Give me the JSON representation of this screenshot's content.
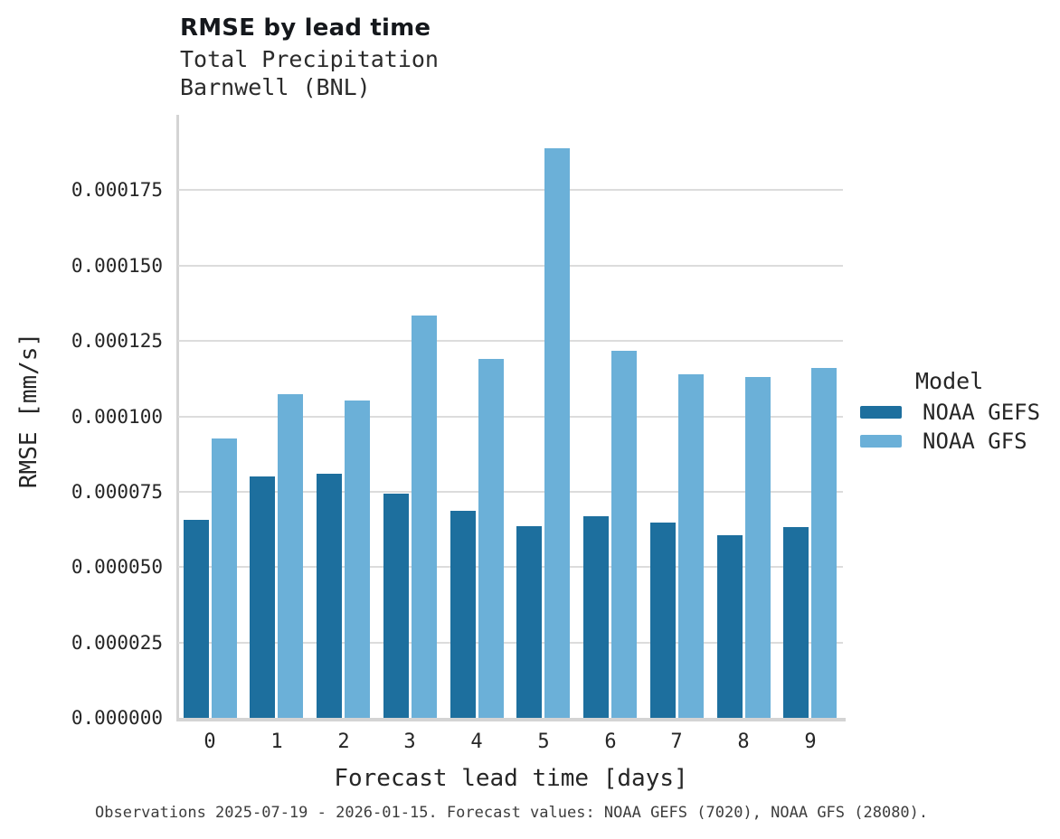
{
  "header": {
    "title": "RMSE by lead time",
    "subtitle_line1": "Total Precipitation",
    "subtitle_line2": "Barnwell (BNL)"
  },
  "chart_data": {
    "type": "bar",
    "title": "RMSE by lead time",
    "subtitle": [
      "Total Precipitation",
      "Barnwell (BNL)"
    ],
    "categories": [
      "0",
      "1",
      "2",
      "3",
      "4",
      "5",
      "6",
      "7",
      "8",
      "9"
    ],
    "series": [
      {
        "name": "NOAA GEFS",
        "color": "#1d6f9e",
        "values": [
          6.56e-05,
          8.01e-05,
          8.11e-05,
          7.44e-05,
          6.87e-05,
          6.36e-05,
          6.68e-05,
          6.48e-05,
          6.07e-05,
          6.33e-05
        ]
      },
      {
        "name": "NOAA GFS",
        "color": "#6bb0d8",
        "values": [
          9.27e-05,
          0.0001072,
          0.0001053,
          0.0001334,
          0.000119,
          0.0001889,
          0.0001218,
          0.0001139,
          0.0001129,
          0.0001161
        ]
      }
    ],
    "xlabel": "Forecast lead time [days]",
    "ylabel": "RMSE [mm/s]",
    "ylim": [
      0,
      0.0002
    ],
    "ytick_step": 2.5e-05,
    "ytick_labels": [
      "0.000000",
      "0.000025",
      "0.000050",
      "0.000075",
      "0.000100",
      "0.000125",
      "0.000150",
      "0.000175"
    ],
    "grid": true,
    "legend_position": "right"
  },
  "legend": {
    "title": "Model",
    "items": [
      {
        "label": "NOAA GEFS",
        "color": "#1d6f9e"
      },
      {
        "label": "NOAA GFS",
        "color": "#6bb0d8"
      }
    ]
  },
  "caption": "Observations 2025-07-19 - 2026-01-15. Forecast values: NOAA GEFS (7020), NOAA GFS (28080).",
  "colors": {
    "gridline": "#dcdcdc",
    "spine": "#d4d4d4",
    "text": "#262626",
    "caption_text": "#3d3d3d",
    "background": "#ffffff"
  }
}
